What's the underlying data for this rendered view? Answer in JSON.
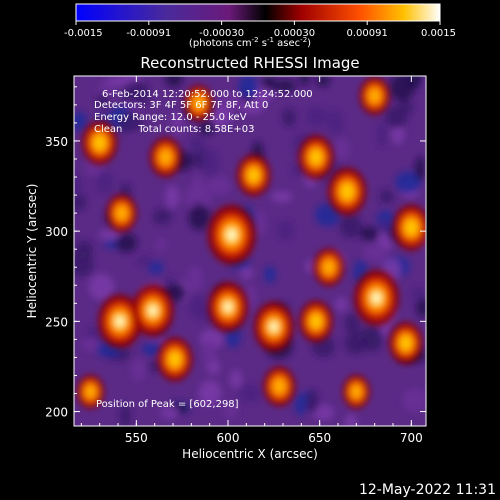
{
  "colorbar": {
    "ticks": [
      "-0.0015",
      "-0.00091",
      "-0.00030",
      "0.00030",
      "0.00091",
      "0.0015"
    ],
    "units_main": "(photons cm",
    "units_sup1": "-2",
    "units_mid": " s",
    "units_sup2": "-1",
    "units_tail": " asec",
    "units_sup3": "-2",
    "units_close": ")"
  },
  "chart_data": {
    "type": "heatmap",
    "title": "Reconstructed RHESSI Image",
    "xlabel": "Heliocentric X (arcsec)",
    "ylabel": "Heliocentric Y (arcsec)",
    "xlim": [
      516,
      708
    ],
    "ylim": [
      192,
      386
    ],
    "xticks": [
      550,
      600,
      650,
      700
    ],
    "yticks": [
      200,
      250,
      300,
      350
    ],
    "colorscale_range": [
      -0.0015,
      0.0015
    ],
    "annotations": [
      "6-Feb-2014 12:20:52.000 to 12:24:52.000",
      "Detectors: 3F 4F 5F 6F 7F 8F, Att 0",
      "Energy Range: 12.0 - 25.0 keV",
      "Clean     Total counts: 8.58E+03"
    ],
    "peak_label": "Position of Peak = [602,298]",
    "peak": [
      602,
      298
    ],
    "sources": [
      {
        "x": 602,
        "y": 298,
        "level": 1.0
      },
      {
        "x": 681,
        "y": 263,
        "level": 0.9
      },
      {
        "x": 541,
        "y": 250,
        "level": 0.85
      },
      {
        "x": 559,
        "y": 256,
        "level": 0.8
      },
      {
        "x": 625,
        "y": 247,
        "level": 0.75
      },
      {
        "x": 600,
        "y": 258,
        "level": 0.75
      },
      {
        "x": 665,
        "y": 322,
        "level": 0.7
      },
      {
        "x": 700,
        "y": 302,
        "level": 0.65
      },
      {
        "x": 648,
        "y": 341,
        "level": 0.6
      },
      {
        "x": 571,
        "y": 229,
        "level": 0.6
      },
      {
        "x": 530,
        "y": 349,
        "level": 0.6
      },
      {
        "x": 614,
        "y": 331,
        "level": 0.55
      },
      {
        "x": 697,
        "y": 238,
        "level": 0.55
      },
      {
        "x": 648,
        "y": 250,
        "level": 0.55
      },
      {
        "x": 566,
        "y": 341,
        "level": 0.5
      },
      {
        "x": 628,
        "y": 214,
        "level": 0.5
      },
      {
        "x": 542,
        "y": 310,
        "level": 0.45
      },
      {
        "x": 680,
        "y": 375,
        "level": 0.45
      },
      {
        "x": 584,
        "y": 371,
        "level": 0.4
      },
      {
        "x": 655,
        "y": 280,
        "level": 0.45
      },
      {
        "x": 525,
        "y": 211,
        "level": 0.35
      },
      {
        "x": 670,
        "y": 211,
        "level": 0.35
      }
    ]
  },
  "footer": {
    "timestamp": "12-May-2022 11:31"
  }
}
